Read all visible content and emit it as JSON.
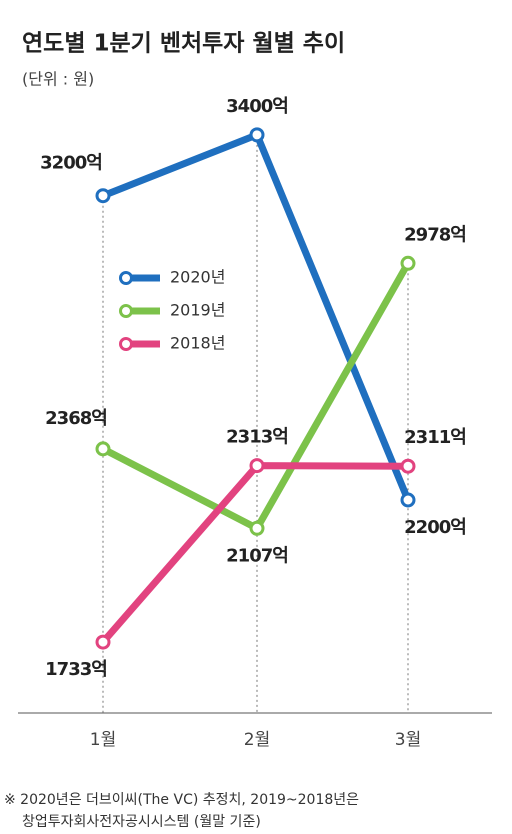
{
  "chart_data": {
    "type": "line",
    "title": "연도별 1분기 벤처투자 월별 추이",
    "subtitle": "(단위 : 원)",
    "categories": [
      "1월",
      "2월",
      "3월"
    ],
    "series": [
      {
        "name": "2020년",
        "color": "#1f6fbf",
        "values": [
          3200,
          3400,
          2200
        ],
        "value_labels": [
          "3200억",
          "3400억",
          "2200억"
        ]
      },
      {
        "name": "2019년",
        "color": "#7cc24a",
        "values": [
          2368,
          2107,
          2978
        ],
        "value_labels": [
          "2368억",
          "2107억",
          "2978억"
        ]
      },
      {
        "name": "2018년",
        "color": "#e2437f",
        "values": [
          1733,
          2313,
          2311
        ],
        "value_labels": [
          "1733억",
          "2313억",
          "2311억"
        ]
      }
    ],
    "ylim": [
      1500,
      3600
    ],
    "footnote": [
      "※ 2020년은 더브이씨(The VC) 추정치, 2019~2018년은",
      "창업투자회사전자공시시스템 (월말 기준)"
    ]
  }
}
